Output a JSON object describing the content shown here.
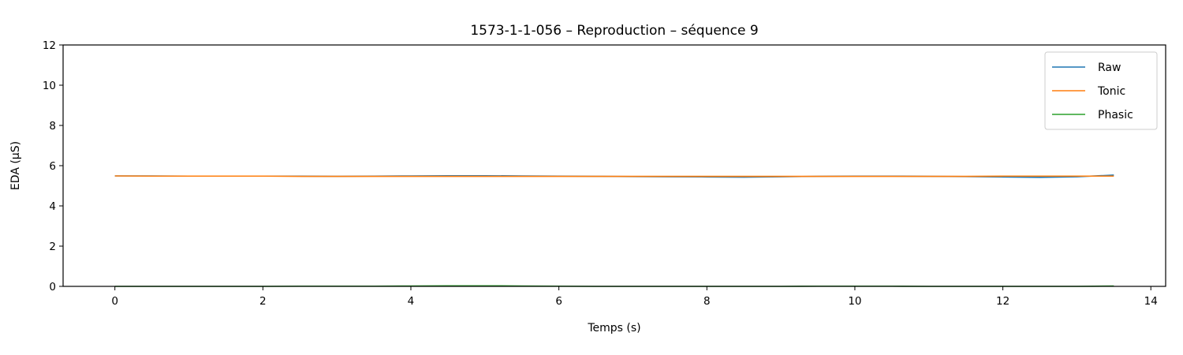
{
  "chart_data": {
    "type": "line",
    "title": "1573-1-1-056 – Reproduction – séquence 9",
    "xlabel": "Temps (s)",
    "ylabel": "EDA (µS)",
    "xlim": [
      -0.7,
      14.2
    ],
    "ylim": [
      0,
      12
    ],
    "xticks": [
      0,
      2,
      4,
      6,
      8,
      10,
      12,
      14
    ],
    "yticks": [
      0,
      2,
      4,
      6,
      8,
      10,
      12
    ],
    "grid": false,
    "legend_position": "top-right",
    "x": [
      0,
      0.5,
      1,
      1.5,
      2,
      2.5,
      3,
      3.5,
      4,
      4.5,
      5,
      5.5,
      6,
      6.5,
      7,
      7.5,
      8,
      8.5,
      9,
      9.5,
      10,
      10.5,
      11,
      11.5,
      12,
      12.5,
      13,
      13.5
    ],
    "series": [
      {
        "name": "Raw",
        "color": "#1f77b4",
        "values": [
          5.49,
          5.49,
          5.48,
          5.48,
          5.48,
          5.48,
          5.47,
          5.48,
          5.49,
          5.5,
          5.5,
          5.49,
          5.48,
          5.47,
          5.46,
          5.45,
          5.44,
          5.43,
          5.45,
          5.47,
          5.48,
          5.48,
          5.47,
          5.46,
          5.44,
          5.42,
          5.45,
          5.53
        ]
      },
      {
        "name": "Tonic",
        "color": "#ff7f0e",
        "values": [
          5.49,
          5.48,
          5.48,
          5.48,
          5.48,
          5.47,
          5.47,
          5.47,
          5.47,
          5.47,
          5.47,
          5.47,
          5.47,
          5.47,
          5.47,
          5.47,
          5.47,
          5.47,
          5.47,
          5.47,
          5.47,
          5.47,
          5.47,
          5.47,
          5.48,
          5.48,
          5.48,
          5.48
        ]
      },
      {
        "name": "Phasic",
        "color": "#2ca02c",
        "values": [
          0.0,
          0.0,
          0.0,
          0.0,
          0.0,
          0.01,
          0.01,
          0.01,
          0.02,
          0.03,
          0.03,
          0.02,
          0.01,
          0.0,
          0.0,
          0.0,
          0.0,
          0.0,
          0.0,
          0.01,
          0.01,
          0.01,
          0.0,
          0.0,
          0.0,
          0.0,
          0.0,
          0.02
        ]
      }
    ]
  }
}
